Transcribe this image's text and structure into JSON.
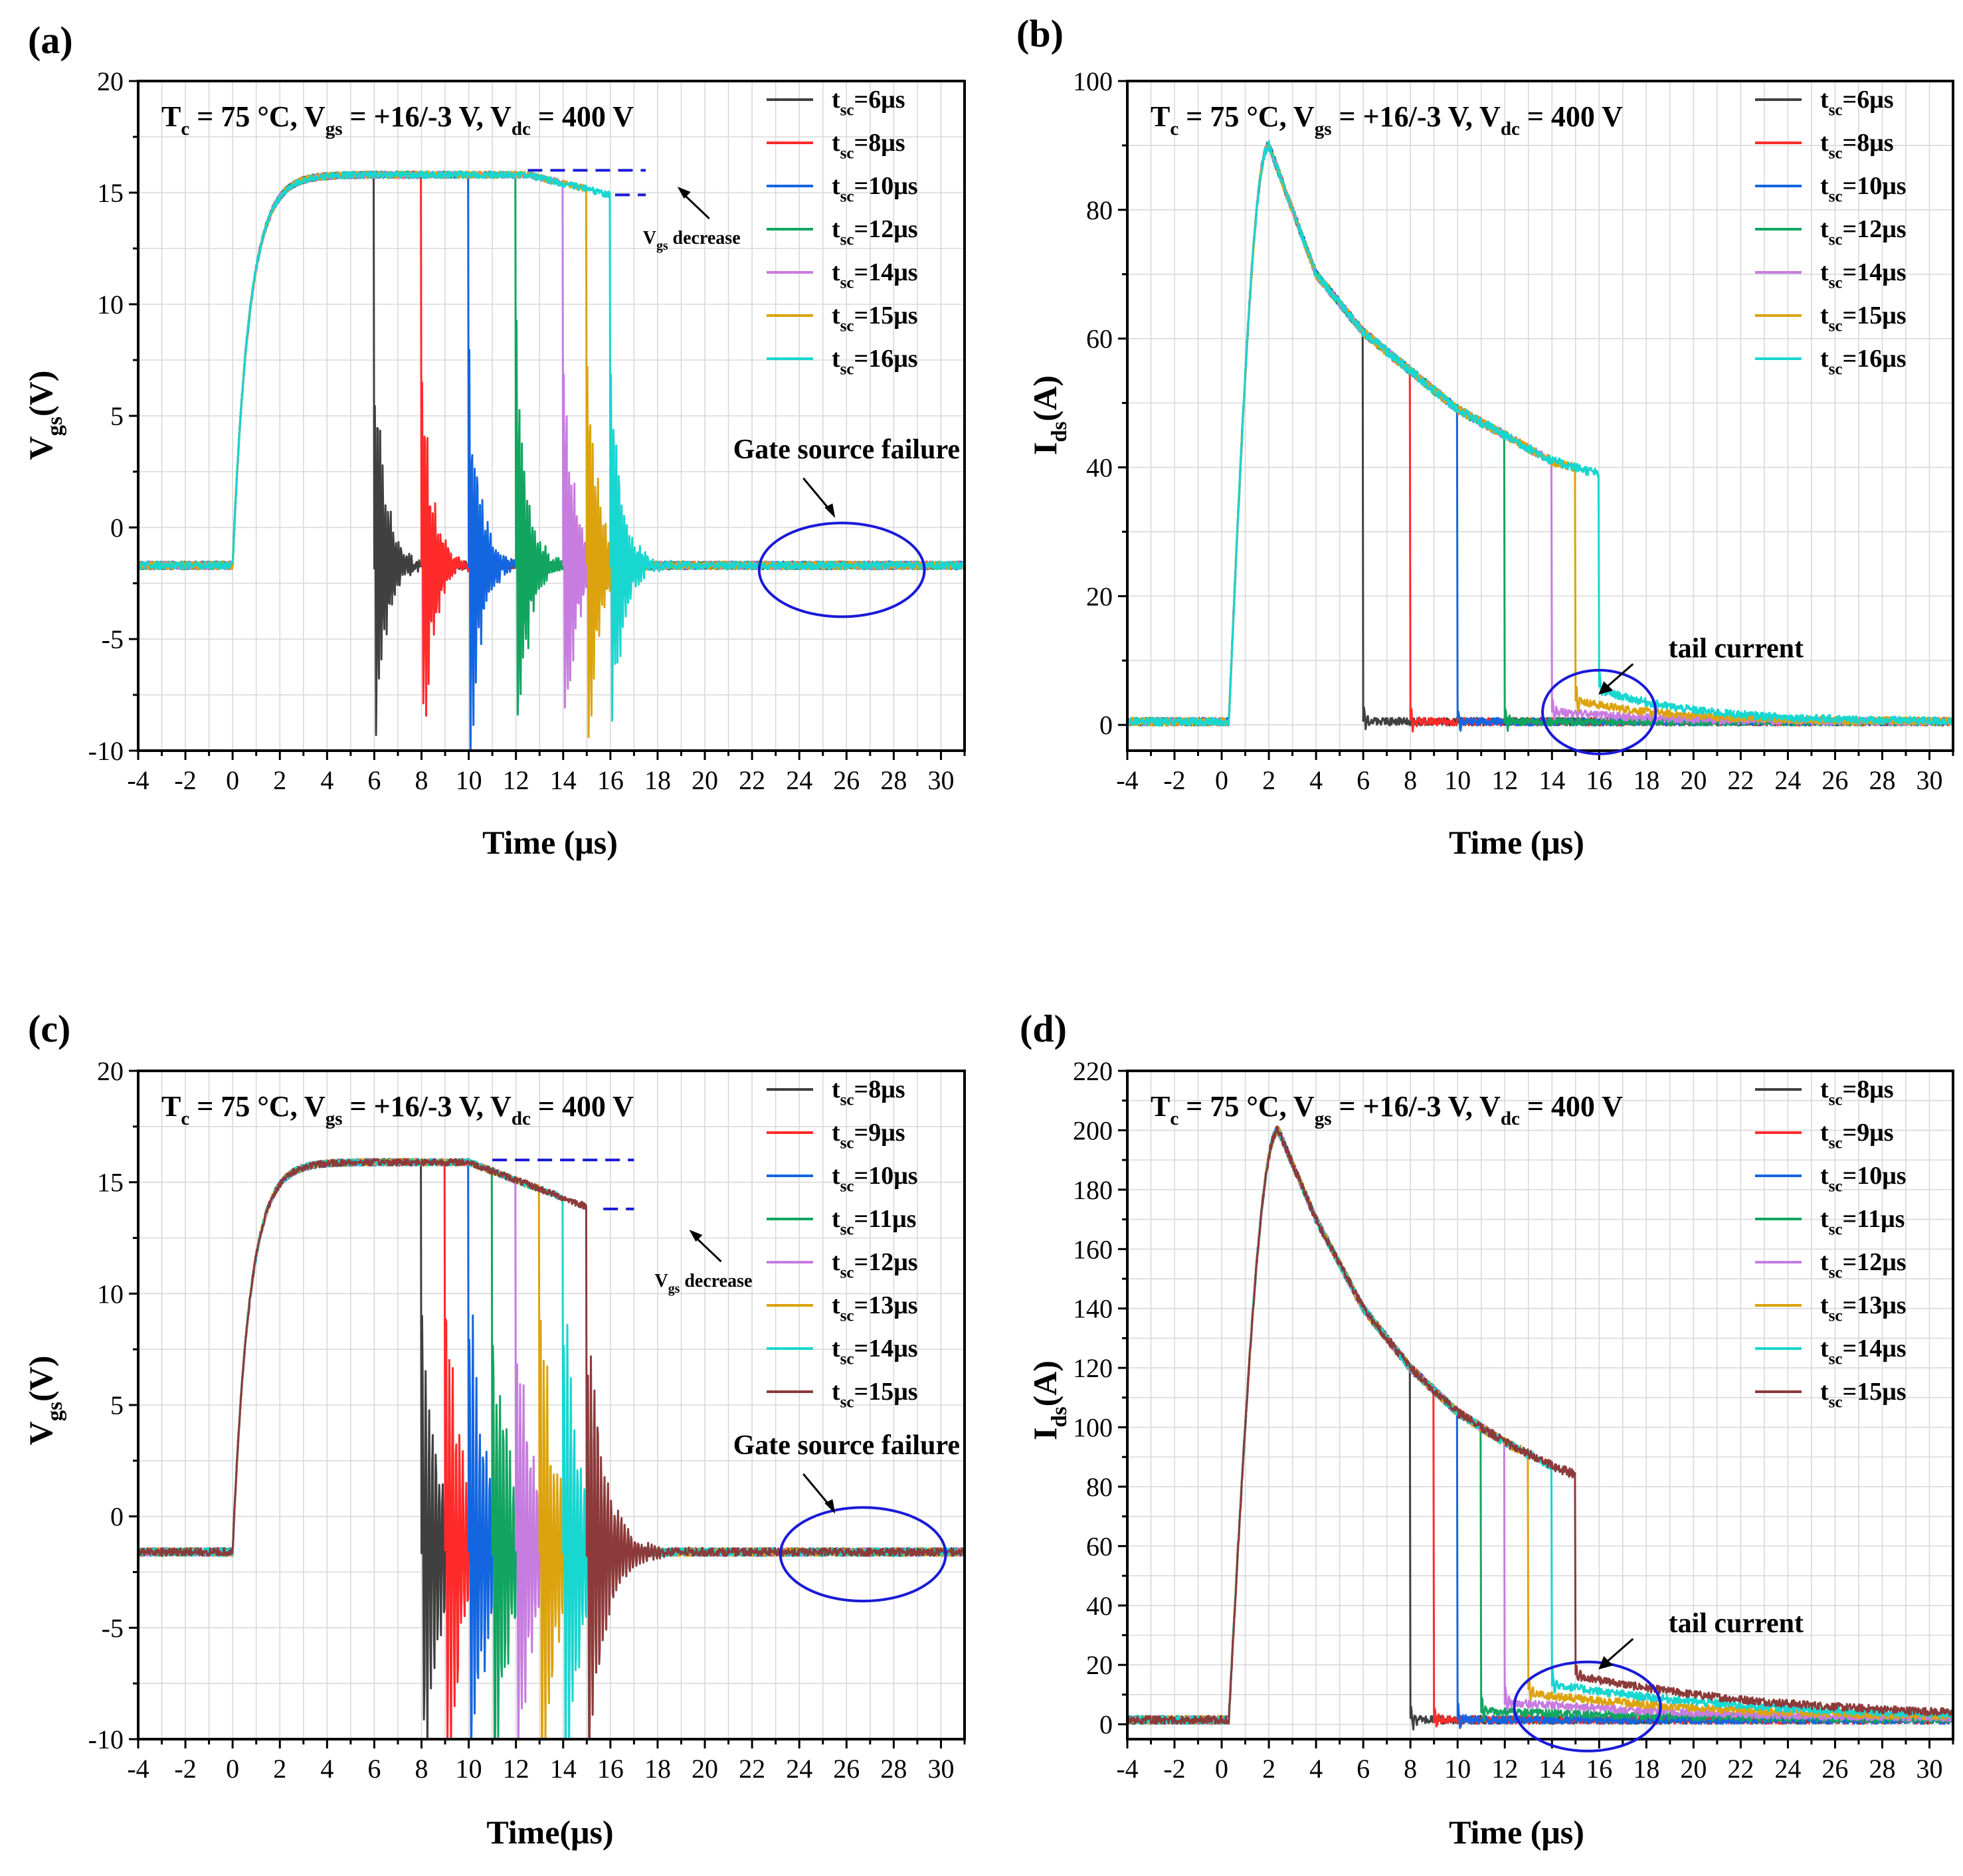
{
  "figure": {
    "time_unit": "μs",
    "condition": {
      "tc": "75 °C",
      "vgs": "+16/-3 V",
      "vdc": "400 V"
    }
  },
  "colors": {
    "6": "#404040",
    "8": "#404040",
    "9": "#ff2a2a",
    "10": "#1466e0",
    "11": "#12a560",
    "12": "#c77ce0",
    "13": "#dca30e",
    "14": "#18d6d0",
    "15": "#8c3a3a",
    "16": "#18d6d0"
  },
  "chart_data": [
    {
      "id": "a",
      "panel_label": "(a)",
      "type": "line",
      "title": "T_c = 75 °C, V_gs = +16/-3 V, V_dc = 400 V",
      "xlabel": "Time (μs)",
      "ylabel": "V_gs(V)",
      "xlim": [
        -4,
        31
      ],
      "ylim": [
        -10,
        20
      ],
      "xticks": [
        -4,
        -2,
        0,
        2,
        4,
        6,
        8,
        10,
        12,
        14,
        16,
        18,
        20,
        22,
        24,
        26,
        28,
        30
      ],
      "yticks": [
        -10,
        -5,
        0,
        5,
        10,
        15,
        20
      ],
      "grid": true,
      "legend_position": "top-right",
      "series": [
        {
          "name": "tsc=6μs",
          "label_sub": "sc",
          "label_main": "t",
          "label_val": "=6μs",
          "tsc": 6,
          "color": "#404040"
        },
        {
          "name": "tsc=8μs",
          "label_main": "t",
          "label_sub": "sc",
          "label_val": "=8μs",
          "tsc": 8,
          "color": "#ff2a2a"
        },
        {
          "name": "tsc=10μs",
          "label_main": "t",
          "label_sub": "sc",
          "label_val": "=10μs",
          "tsc": 10,
          "color": "#1466e0"
        },
        {
          "name": "tsc=12μs",
          "label_main": "t",
          "label_sub": "sc",
          "label_val": "=12μs",
          "tsc": 12,
          "color": "#12a560"
        },
        {
          "name": "tsc=14μs",
          "label_main": "t",
          "label_sub": "sc",
          "label_val": "=14μs",
          "tsc": 14,
          "color": "#c77ce0"
        },
        {
          "name": "tsc=15μs",
          "label_main": "t",
          "label_sub": "sc",
          "label_val": "=15μs",
          "tsc": 15,
          "color": "#dca30e"
        },
        {
          "name": "tsc=16μs",
          "label_main": "t",
          "label_sub": "sc",
          "label_val": "=16μs",
          "tsc": 16,
          "color": "#18d6d0"
        }
      ],
      "waveform": {
        "kind": "vgs",
        "low": -1.7,
        "high": 15.8,
        "rise_tau": 0.7,
        "droop_start": 12.5,
        "droop_end": 16,
        "droop_to": 14.9,
        "ring_amp": 12,
        "ring_decay": 0.45,
        "ring_freq": 9
      },
      "annotations": [
        {
          "text": "V_gs decrease",
          "x": 18.5,
          "y": 13.6
        },
        {
          "text": "Gate source failure",
          "x": 26,
          "y": 3.1
        }
      ],
      "highlight_ellipse": {
        "cx": 25.8,
        "cy": -1.9,
        "rx": 3.5,
        "ry": 2.1
      },
      "decrease_bracket": {
        "x1": 12.5,
        "x2": 17.5,
        "y_top": 16.0,
        "y_bot": 14.9
      }
    },
    {
      "id": "b",
      "panel_label": "(b)",
      "type": "line",
      "title": "T_c = 75 °C, V_gs = +16/-3 V, V_dc = 400 V",
      "xlabel": "Time (μs)",
      "ylabel": "I_ds(A)",
      "xlim": [
        -4,
        31
      ],
      "ylim": [
        -4,
        100
      ],
      "xticks": [
        -4,
        -2,
        0,
        2,
        4,
        6,
        8,
        10,
        12,
        14,
        16,
        18,
        20,
        22,
        24,
        26,
        28,
        30
      ],
      "yticks": [
        0,
        20,
        40,
        60,
        80,
        100
      ],
      "grid": true,
      "legend_position": "top-right",
      "series": [
        {
          "name": "tsc=6μs",
          "label_main": "t",
          "label_sub": "sc",
          "label_val": "=6μs",
          "tsc": 6,
          "color": "#404040"
        },
        {
          "name": "tsc=8μs",
          "label_main": "t",
          "label_sub": "sc",
          "label_val": "=8μs",
          "tsc": 8,
          "color": "#ff2a2a"
        },
        {
          "name": "tsc=10μs",
          "label_main": "t",
          "label_sub": "sc",
          "label_val": "=10μs",
          "tsc": 10,
          "color": "#1466e0"
        },
        {
          "name": "tsc=12μs",
          "label_main": "t",
          "label_sub": "sc",
          "label_val": "=12μs",
          "tsc": 12,
          "color": "#12a560"
        },
        {
          "name": "tsc=14μs",
          "label_main": "t",
          "label_sub": "sc",
          "label_val": "=14μs",
          "tsc": 14,
          "color": "#c77ce0"
        },
        {
          "name": "tsc=15μs",
          "label_main": "t",
          "label_sub": "sc",
          "label_val": "=15μs",
          "tsc": 15,
          "color": "#dca30e"
        },
        {
          "name": "tsc=16μs",
          "label_main": "t",
          "label_sub": "sc",
          "label_val": "=16μs",
          "tsc": 16,
          "color": "#18d6d0"
        }
      ],
      "waveform": {
        "kind": "ids",
        "base": 0.5,
        "peak": 90,
        "peak_t": 2,
        "rise_start": 0.3,
        "curve": [
          [
            2,
            90
          ],
          [
            4,
            70
          ],
          [
            6,
            61
          ],
          [
            8,
            55
          ],
          [
            10,
            49
          ],
          [
            12,
            45
          ],
          [
            14,
            41
          ],
          [
            16,
            39
          ]
        ],
        "tail_from": 14,
        "tail_amp": 5,
        "tail_tau": 4
      },
      "annotations": [
        {
          "text": "tail current",
          "x": 21.8,
          "y": 10.5
        }
      ],
      "highlight_ellipse": {
        "cx": 16,
        "cy": 2.0,
        "rx": 2.4,
        "ry": 6.5
      }
    },
    {
      "id": "c",
      "panel_label": "(c)",
      "type": "line",
      "title": "T_c = 75 °C, V_gs = +16/-3 V, V_dc = 400 V",
      "xlabel": "Time(μs)",
      "ylabel": "V_gs(V)",
      "xlim": [
        -4,
        31
      ],
      "ylim": [
        -10,
        20
      ],
      "xticks": [
        -4,
        -2,
        0,
        2,
        4,
        6,
        8,
        10,
        12,
        14,
        16,
        18,
        20,
        22,
        24,
        26,
        28,
        30
      ],
      "yticks": [
        -10,
        -5,
        0,
        5,
        10,
        15,
        20
      ],
      "grid": true,
      "legend_position": "top-right",
      "series": [
        {
          "name": "tsc=8μs",
          "label_main": "t",
          "label_sub": "sc",
          "label_val": "=8μs",
          "tsc": 8,
          "color": "#404040"
        },
        {
          "name": "tsc=9μs",
          "label_main": "t",
          "label_sub": "sc",
          "label_val": "=9μs",
          "tsc": 9,
          "color": "#ff2a2a"
        },
        {
          "name": "tsc=10μs",
          "label_main": "t",
          "label_sub": "sc",
          "label_val": "=10μs",
          "tsc": 10,
          "color": "#1466e0"
        },
        {
          "name": "tsc=11μs",
          "label_main": "t",
          "label_sub": "sc",
          "label_val": "=11μs",
          "tsc": 11,
          "color": "#12a560"
        },
        {
          "name": "tsc=12μs",
          "label_main": "t",
          "label_sub": "sc",
          "label_val": "=12μs",
          "tsc": 12,
          "color": "#c77ce0"
        },
        {
          "name": "tsc=13μs",
          "label_main": "t",
          "label_sub": "sc",
          "label_val": "=13μs",
          "tsc": 13,
          "color": "#dca30e"
        },
        {
          "name": "tsc=14μs",
          "label_main": "t",
          "label_sub": "sc",
          "label_val": "=14μs",
          "tsc": 14,
          "color": "#18d6d0"
        },
        {
          "name": "tsc=15μs",
          "label_main": "t",
          "label_sub": "sc",
          "label_val": "=15μs",
          "tsc": 15,
          "color": "#8c3a3a"
        }
      ],
      "waveform": {
        "kind": "vgs",
        "low": -1.6,
        "high": 15.9,
        "rise_tau": 0.7,
        "droop_start": 10,
        "droop_end": 15,
        "droop_to": 13.9,
        "ring_amp": 14,
        "ring_decay": 0.7,
        "ring_freq": 7
      },
      "annotations": [
        {
          "text": "V_gs decrease",
          "x": 19,
          "y": 11.2
        },
        {
          "text": "Gate source failure",
          "x": 26,
          "y": 2.8
        }
      ],
      "highlight_ellipse": {
        "cx": 26.7,
        "cy": -1.7,
        "rx": 3.5,
        "ry": 2.1
      },
      "decrease_bracket": {
        "x1": 11,
        "x2": 17,
        "y_top": 16.0,
        "y_bot": 13.8
      }
    },
    {
      "id": "d",
      "panel_label": "(d)",
      "type": "line",
      "title": "T_c = 75 °C, V_gs = +16/-3 V, V_dc = 400 V",
      "xlabel": "Time (μs)",
      "ylabel": "I_ds(A)",
      "xlim": [
        -4,
        31
      ],
      "ylim": [
        -5,
        220
      ],
      "xticks": [
        -4,
        -2,
        0,
        2,
        4,
        6,
        8,
        10,
        12,
        14,
        16,
        18,
        20,
        22,
        24,
        26,
        28,
        30
      ],
      "yticks": [
        0,
        20,
        40,
        60,
        80,
        100,
        120,
        140,
        160,
        180,
        200,
        220
      ],
      "grid": true,
      "legend_position": "top-right",
      "series": [
        {
          "name": "tsc=8μs",
          "label_main": "t",
          "label_sub": "sc",
          "label_val": "=8μs",
          "tsc": 8,
          "color": "#404040"
        },
        {
          "name": "tsc=9μs",
          "label_main": "t",
          "label_sub": "sc",
          "label_val": "=9μs",
          "tsc": 9,
          "color": "#ff2a2a"
        },
        {
          "name": "tsc=10μs",
          "label_main": "t",
          "label_sub": "sc",
          "label_val": "=10μs",
          "tsc": 10,
          "color": "#1466e0"
        },
        {
          "name": "tsc=11μs",
          "label_main": "t",
          "label_sub": "sc",
          "label_val": "=11μs",
          "tsc": 11,
          "color": "#12a560"
        },
        {
          "name": "tsc=12μs",
          "label_main": "t",
          "label_sub": "sc",
          "label_val": "=12μs",
          "tsc": 12,
          "color": "#c77ce0"
        },
        {
          "name": "tsc=13μs",
          "label_main": "t",
          "label_sub": "sc",
          "label_val": "=13μs",
          "tsc": 13,
          "color": "#dca30e"
        },
        {
          "name": "tsc=14μs",
          "label_main": "t",
          "label_sub": "sc",
          "label_val": "=14μs",
          "tsc": 14,
          "color": "#18d6d0"
        },
        {
          "name": "tsc=15μs",
          "label_main": "t",
          "label_sub": "sc",
          "label_val": "=15μs",
          "tsc": 15,
          "color": "#8c3a3a"
        }
      ],
      "waveform": {
        "kind": "ids",
        "base": 1.5,
        "peak": 200,
        "peak_t": 2.4,
        "rise_start": 0.3,
        "curve": [
          [
            2.4,
            200
          ],
          [
            4,
            170
          ],
          [
            6,
            140
          ],
          [
            8,
            120
          ],
          [
            10,
            105
          ],
          [
            12,
            95
          ],
          [
            14,
            87
          ],
          [
            15,
            84
          ]
        ],
        "tail_from": 11,
        "tail_amp": 18,
        "tail_tau": 9
      },
      "annotations": [
        {
          "text": "tail current",
          "x": 21.8,
          "y": 31
        }
      ],
      "highlight_ellipse": {
        "cx": 15.5,
        "cy": 6,
        "rx": 3.1,
        "ry": 15
      }
    }
  ]
}
